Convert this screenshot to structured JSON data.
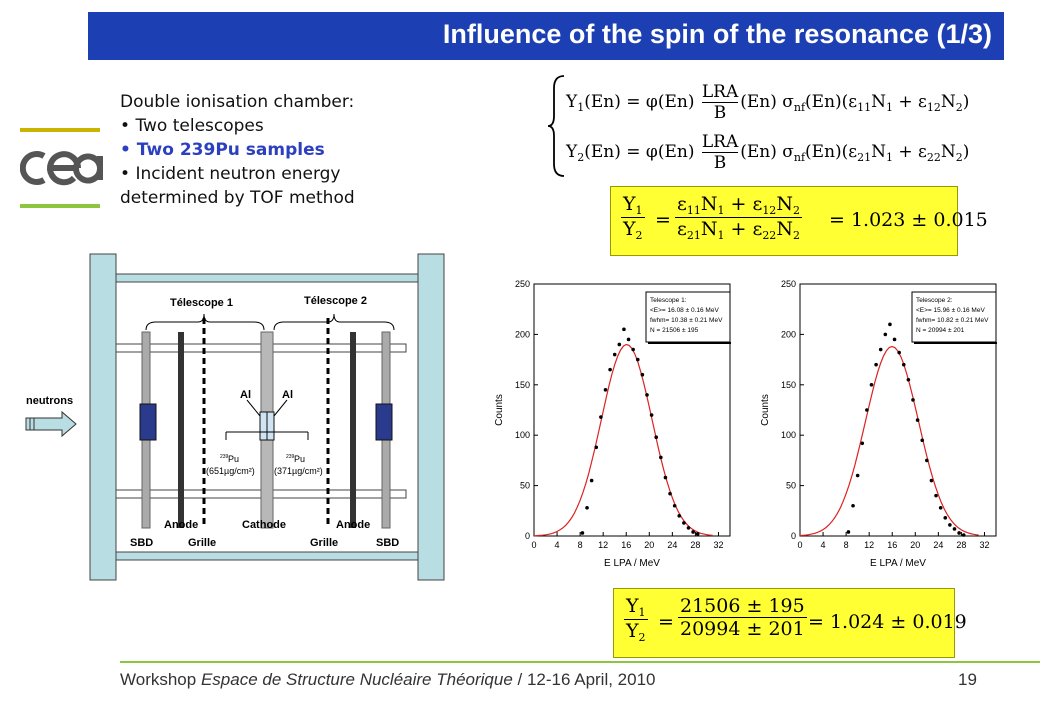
{
  "title": "Influence of the spin of the resonance (1/3)",
  "intro": {
    "heading": "Double ionisation chamber:",
    "bullets": [
      "Two telescopes",
      "Two 239Pu samples",
      "Incident neutron energy determined by TOF method"
    ]
  },
  "diagram": {
    "telescope1": "Télescope 1",
    "telescope2": "Télescope 2",
    "neutrons": "neutrons",
    "al_left": "Al",
    "al_right": "Al",
    "sample_left_iso": "239",
    "sample_left_el": "Pu",
    "sample_left_mass": "(651µg/cm²)",
    "sample_right_iso": "239",
    "sample_right_el": "Pu",
    "sample_right_mass": "(371µg/cm²)",
    "anode_left": "Anode",
    "cathode": "Cathode",
    "anode_right": "Anode",
    "sbd_left": "SBD",
    "grille_left": "Grille",
    "grille_right": "Grille",
    "sbd_right": "SBD"
  },
  "equations": {
    "phi": "φ(En)",
    "lra": "LRA",
    "b": "B",
    "sigma": "σ",
    "ratio_value": "= 1.023 ± 0.015",
    "ratio_result_num": "21506 ± 195",
    "ratio_result_den": "20994 ± 201",
    "ratio_result_value": "= 1.024 ± 0.019"
  },
  "chart_data": [
    {
      "type": "scatter",
      "xlabel": "E LPA / MeV",
      "ylabel": "Counts",
      "xlim": [
        0,
        34
      ],
      "ylim": [
        0,
        250
      ],
      "xticks": [
        0,
        4,
        8,
        12,
        16,
        20,
        24,
        28,
        32
      ],
      "yticks": [
        0,
        50,
        100,
        150,
        200,
        250
      ],
      "legend_lines": [
        "Telescope 1:",
        "<E>= 16.08 ± 0.16 MeV",
        "fwhm= 10.38 ± 0.21 MeV",
        "N = 21506 ± 195"
      ],
      "legend": "top-right",
      "fit": {
        "mean": 16.08,
        "fwhm": 10.38,
        "amplitude": 190
      },
      "points_x": [
        8.4,
        9.2,
        10.0,
        10.8,
        11.6,
        12.4,
        13.2,
        14.0,
        14.8,
        15.6,
        16.4,
        17.2,
        18.0,
        18.8,
        19.6,
        20.4,
        21.2,
        22.0,
        22.8,
        23.6,
        24.4,
        25.2,
        26.0,
        26.8,
        27.6,
        28.4
      ],
      "points_y": [
        3,
        28,
        55,
        88,
        118,
        145,
        165,
        180,
        190,
        205,
        195,
        185,
        175,
        160,
        140,
        120,
        98,
        78,
        58,
        42,
        30,
        20,
        13,
        8,
        4,
        2
      ]
    },
    {
      "type": "scatter",
      "xlabel": "E LPA / MeV",
      "ylabel": "Counts",
      "xlim": [
        0,
        34
      ],
      "ylim": [
        0,
        250
      ],
      "xticks": [
        0,
        4,
        8,
        12,
        16,
        20,
        24,
        28,
        32
      ],
      "yticks": [
        0,
        50,
        100,
        150,
        200,
        250
      ],
      "legend_lines": [
        "Telescope 2:",
        "<E>= 15.96 ± 0.16 MeV",
        "fwhm= 10.82 ± 0.21 MeV",
        "N = 20994 ± 201"
      ],
      "legend": "top-right",
      "fit": {
        "mean": 15.96,
        "fwhm": 10.82,
        "amplitude": 188
      },
      "points_x": [
        8.4,
        9.2,
        10.0,
        10.8,
        11.6,
        12.4,
        13.2,
        14.0,
        14.8,
        15.6,
        16.4,
        17.2,
        18.0,
        18.8,
        19.6,
        20.4,
        21.2,
        22.0,
        22.8,
        23.6,
        24.4,
        25.2,
        26.0,
        26.8,
        27.6,
        28.4
      ],
      "points_y": [
        4,
        30,
        60,
        92,
        125,
        150,
        170,
        185,
        200,
        210,
        195,
        182,
        170,
        155,
        135,
        115,
        95,
        75,
        55,
        40,
        28,
        18,
        11,
        7,
        3,
        1
      ]
    }
  ],
  "footer": {
    "prefix": "Workshop ",
    "italic": "Espace de Structure Nucléaire Théorique",
    "suffix": " / 12-16 April, 2010",
    "page": "19"
  }
}
